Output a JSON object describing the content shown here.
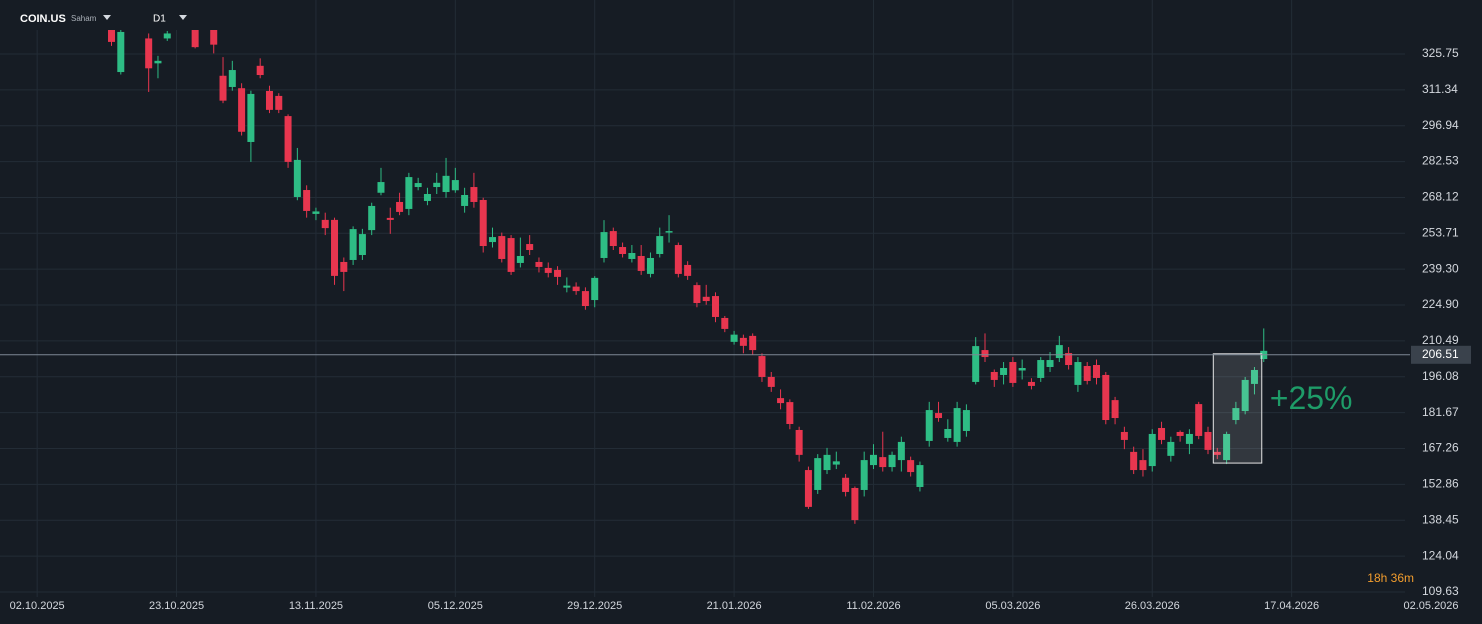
{
  "header": {
    "symbol": "COIN.US",
    "kind": "Saham",
    "timeframe": "D1"
  },
  "chart_data": {
    "type": "candlestick",
    "up_color": "#2ebd85",
    "down_color": "#e8364f",
    "x": [
      8,
      9,
      12,
      13,
      14,
      17,
      18,
      19,
      20,
      21,
      22,
      23,
      24,
      25,
      26,
      27,
      28,
      29,
      30,
      31,
      32,
      33,
      34,
      35,
      36,
      37,
      38,
      39,
      40,
      41,
      42,
      43,
      44,
      45,
      46,
      47,
      48,
      49,
      50,
      51,
      52,
      53,
      54,
      55,
      56,
      57,
      58,
      59,
      60,
      61,
      62,
      63,
      64,
      65,
      66,
      67,
      68,
      69,
      70,
      71,
      72,
      73,
      74,
      75,
      76,
      77,
      78,
      79,
      80,
      81,
      82,
      83,
      84,
      85,
      86,
      87,
      88,
      89,
      90,
      91,
      92,
      93,
      94,
      95,
      96,
      97,
      98,
      99,
      100,
      101,
      102,
      103,
      104,
      105,
      106,
      107,
      108,
      109,
      110,
      111,
      112,
      113,
      114,
      115,
      116,
      117,
      118,
      119,
      120,
      121,
      122,
      123,
      124,
      125,
      126,
      127,
      128,
      129,
      130,
      131,
      132
    ],
    "open": [
      335.4,
      318.5,
      332,
      322,
      332,
      336,
      338.5,
      336.5,
      317,
      312.5,
      312,
      290.4,
      321,
      310.9,
      308.9,
      300.8,
      268.3,
      271.1,
      261.5,
      259.1,
      259.1,
      242.2,
      243,
      245,
      255,
      270,
      259.9,
      266.3,
      263.5,
      272.3,
      266.7,
      272.3,
      270.3,
      271,
      264.7,
      272.3,
      267.1,
      250.2,
      252.6,
      251.8,
      241.8,
      249.4,
      242.2,
      239.8,
      239,
      231.9,
      232.3,
      230.5,
      226.9,
      243.8,
      254.6,
      248.2,
      243.4,
      244.6,
      237.4,
      245.4,
      254,
      249,
      241,
      232.9,
      228.2,
      228.5,
      219.7,
      210.1,
      211.7,
      212.5,
      204.4,
      196,
      187.5,
      185.9,
      174.7,
      158.6,
      150.6,
      158.6,
      160.8,
      155.5,
      151.4,
      150.6,
      160.6,
      163.8,
      159.8,
      162.6,
      162.6,
      151.8,
      170.3,
      181.5,
      171.5,
      169.9,
      174.3,
      194,
      206.8,
      198,
      196.8,
      202,
      198.6,
      194,
      195.6,
      200,
      203.6,
      205.6,
      192.8,
      200.4,
      200.8,
      196.8,
      186.7,
      173.9,
      165.9,
      162.6,
      160.2,
      175.5,
      164.3,
      173.9,
      169.1,
      185.1,
      173.9,
      165.9,
      162.6,
      178.7,
      182.3,
      193.2,
      203.2
    ],
    "high": [
      337,
      336,
      334,
      325,
      335,
      339,
      341,
      338,
      324.5,
      323,
      314,
      311,
      324,
      313,
      310,
      301.5,
      288,
      273,
      264,
      262,
      260,
      244,
      256.5,
      255.5,
      266,
      280,
      264,
      270,
      278,
      276,
      272,
      278,
      284,
      280,
      272,
      278,
      268,
      256,
      254,
      253,
      252,
      253,
      244,
      242,
      240.5,
      236,
      234,
      232,
      236.5,
      259,
      256,
      250,
      249,
      249,
      246,
      256,
      261,
      250,
      242.5,
      234,
      233,
      230,
      220.5,
      214.5,
      213,
      213.5,
      205.5,
      198,
      191,
      187,
      176,
      160,
      165,
      167.5,
      166,
      157,
      152,
      166,
      169,
      174,
      166,
      172,
      164,
      162,
      186,
      186,
      179,
      186,
      185,
      212,
      213.5,
      199,
      202,
      204,
      203,
      195.5,
      204,
      206,
      212.5,
      208,
      204,
      202,
      203,
      198,
      188,
      176,
      168,
      167,
      175,
      178,
      172,
      174.5,
      175,
      186,
      176,
      167.5,
      174,
      186,
      196,
      200,
      215.5
    ],
    "low": [
      329,
      317.5,
      310.5,
      316,
      331,
      328,
      338,
      326,
      306,
      311,
      293,
      282.4,
      316,
      302,
      302,
      280,
      267,
      260,
      259,
      253,
      233,
      230.5,
      241,
      243,
      253,
      269,
      253.5,
      261,
      261,
      271,
      265,
      269.5,
      268,
      270,
      262,
      264,
      246,
      248,
      242,
      237,
      240,
      245,
      238,
      236,
      233,
      230,
      229,
      223,
      224,
      242,
      247,
      244,
      242,
      237,
      236,
      244,
      250,
      236,
      235,
      224,
      225,
      218,
      214,
      209,
      205.5,
      205,
      194,
      190,
      183,
      175,
      162,
      143,
      149,
      157,
      159,
      148,
      137,
      148,
      159,
      158,
      158,
      158,
      156,
      150,
      168,
      178,
      170,
      168,
      172,
      193,
      202,
      192,
      193,
      192,
      195,
      191,
      194,
      198,
      202,
      199,
      190,
      193,
      193,
      177,
      177,
      167,
      157,
      156,
      158,
      169,
      162,
      170,
      165,
      171,
      165,
      163,
      161,
      177,
      181,
      189,
      202
    ],
    "close": [
      330.6,
      334.6,
      320,
      323,
      334,
      328.5,
      340,
      329.5,
      307,
      319.3,
      294.5,
      309.7,
      317.3,
      303.3,
      303.3,
      282.4,
      283.2,
      262.7,
      262.5,
      255.8,
      236.6,
      238.2,
      255.4,
      253.4,
      264.7,
      274.3,
      259.1,
      262.3,
      276.3,
      273.9,
      269.5,
      274,
      276.8,
      275.1,
      269.1,
      266.3,
      248.6,
      252.2,
      243.4,
      238.2,
      244.6,
      247,
      240.2,
      237.8,
      236.2,
      232.7,
      230.5,
      224.5,
      235.8,
      254.2,
      248.6,
      245.4,
      245.8,
      238.6,
      243.8,
      252.6,
      254.6,
      237.4,
      236.6,
      225.7,
      226.5,
      220.1,
      215.3,
      213,
      208.5,
      206.8,
      196,
      192,
      185.5,
      177.1,
      164.7,
      143.8,
      163.4,
      164.7,
      162.1,
      149.8,
      138.5,
      162.6,
      164.7,
      159.8,
      164.7,
      169.9,
      157.8,
      160.6,
      182.7,
      179.5,
      175.1,
      183.5,
      182.7,
      208.4,
      204,
      194.8,
      199.6,
      193.6,
      199.6,
      192.4,
      202.8,
      202.8,
      208.8,
      200.8,
      202,
      194.4,
      195.6,
      178.7,
      179.5,
      170.7,
      158.6,
      158.6,
      173.1,
      170.7,
      169.9,
      172.3,
      173.1,
      172.3,
      166.7,
      164.7,
      173.1,
      183.5,
      194.8,
      198.8,
      206.5
    ],
    "xlim": [
      -4,
      147.2
    ],
    "xticks": [
      {
        "value": 0,
        "label": "02.10.2025"
      },
      {
        "value": 15,
        "label": "23.10.2025"
      },
      {
        "value": 30,
        "label": "13.11.2025"
      },
      {
        "value": 45,
        "label": "05.12.2025"
      },
      {
        "value": 60,
        "label": "29.12.2025"
      },
      {
        "value": 75,
        "label": "21.01.2026"
      },
      {
        "value": 90,
        "label": "11.02.2026"
      },
      {
        "value": 105,
        "label": "05.03.2026"
      },
      {
        "value": 120,
        "label": "26.03.2026"
      },
      {
        "value": 135,
        "label": "17.04.2026"
      },
      {
        "value": 150,
        "label": "02.05.2026"
      }
    ],
    "ylim": [
      107.6,
      347.44
    ],
    "yticks": [
      325.75,
      311.34,
      296.94,
      282.53,
      268.12,
      253.71,
      {
        "value": 239.3,
        "label": "239.30"
      },
      {
        "value": 224.9,
        "label": "224.90"
      },
      210.49,
      196.08,
      181.67,
      167.26,
      152.86,
      138.45,
      124.04,
      109.63
    ],
    "grid": true,
    "current_price": 206.51,
    "annotation": "+25%",
    "countdown": "18h 36m"
  }
}
